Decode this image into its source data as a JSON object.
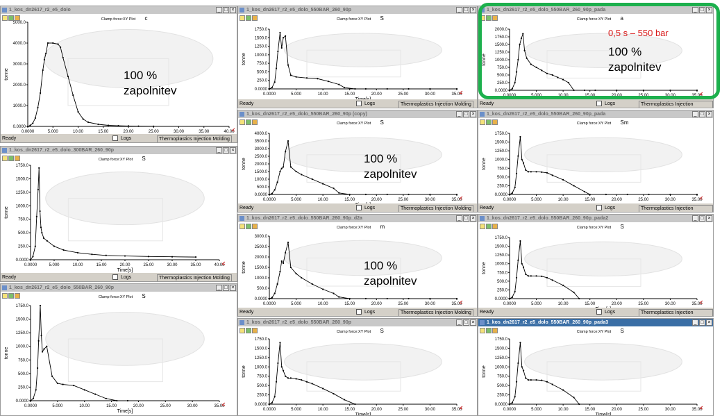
{
  "product": "Thermoplastics Injection Molding",
  "status_text": "Ready",
  "logs_label": "Logs",
  "fill_label": "100 %\nzapolnitev",
  "windows": [
    {
      "title": "1_kos_dn2617_r2_e5_dolo",
      "active": false
    },
    {
      "title": "1_kos_dn2617_r2_e5_dolo_300BAR_260_90p",
      "active": false
    },
    {
      "title": "1_kos_dn2617_r2_e5_dolo_550BAR_260_90p",
      "active": false
    },
    {
      "title": "1_kos_dn2617_r2_e5_dolo_550BAR_260_90p",
      "active": false
    },
    {
      "title": "1_kos_dn2617_r2_e5_dolo_550BAR_260_90p (copy)",
      "active": false
    },
    {
      "title": "1_kos_dn2617_r2_e5_dolo_550BAR_260_90p_d2a",
      "active": false
    },
    {
      "title": "1_kos_dn2617_r2_e5_dolo_550BAR_260_90p",
      "active": false
    },
    {
      "title": "1_kos_dn2617_r2_e5_dolo_550BAR_260_90p_pada",
      "active": false
    },
    {
      "title": "1_kos_dn2617_r2_e5_dolo_550BAR_260_90p_pada2",
      "active": false
    },
    {
      "title": "1_kos_dn2617_r2_e5_dolo_550BAR_260_90p_pada3",
      "active": true
    }
  ],
  "annotations": {
    "pressure_note": "0,5 s – 550 bar"
  },
  "chart_data": [
    {
      "type": "line",
      "title": "Clamp force:XY Plot",
      "title_suffix": "c",
      "xlabel": "Time[s]",
      "ylabel": "tonne",
      "xlim": [
        0,
        40
      ],
      "ylim": [
        0,
        5000
      ],
      "xticks": [
        "0.0000",
        "5.000",
        "10.00",
        "15.00",
        "20.00",
        "25.00",
        "30.00",
        "35.00",
        "40.00"
      ],
      "yticks": [
        "0.0000",
        "1000.0",
        "2000.0",
        "3000.0",
        "4000.0",
        "5000.0"
      ],
      "x": [
        0,
        0.5,
        1,
        1.5,
        2,
        2.5,
        3,
        3.3,
        3.6,
        4,
        5,
        6,
        6.5,
        7,
        8,
        9,
        10,
        11,
        12,
        14,
        16,
        18,
        20,
        22,
        25
      ],
      "y": [
        0,
        50,
        150,
        400,
        900,
        1600,
        2700,
        3200,
        3500,
        4000,
        4000,
        3950,
        3800,
        3300,
        2400,
        1500,
        700,
        350,
        200,
        100,
        50,
        30,
        20,
        10,
        5
      ]
    },
    {
      "type": "line",
      "title": "Clamp force:XY Plot",
      "title_suffix": "S",
      "xlabel": "Time[s]",
      "ylabel": "tonne",
      "xlim": [
        0,
        40
      ],
      "ylim": [
        0,
        1750
      ],
      "xticks": [
        "0.0000",
        "5.000",
        "10.00",
        "15.00",
        "20.00",
        "25.00",
        "30.00",
        "35.00",
        "40.00"
      ],
      "yticks": [
        "0.0000",
        "250.0",
        "500.0",
        "750.0",
        "1000.0",
        "1250.0",
        "1500.0",
        "1750.0"
      ],
      "x": [
        0,
        0.5,
        1,
        1.3,
        1.6,
        1.8,
        2,
        2.2,
        2.4,
        2.8,
        3.5,
        5,
        7,
        10,
        13,
        16,
        20,
        25,
        30,
        35
      ],
      "y": [
        0,
        60,
        250,
        800,
        1300,
        1700,
        900,
        600,
        500,
        400,
        350,
        250,
        180,
        130,
        100,
        80,
        70,
        60,
        55,
        50
      ]
    },
    {
      "type": "line",
      "title": "Clamp force:XY Plot",
      "title_suffix": "S",
      "xlabel": "Time[s]",
      "ylabel": "tonne",
      "xlim": [
        0,
        35
      ],
      "ylim": [
        0,
        1750
      ],
      "xticks": [
        "0.0000",
        "5.000",
        "10.00",
        "15.00",
        "20.00",
        "25.00",
        "30.00",
        "35.00"
      ],
      "yticks": [
        "0.0000",
        "250.0",
        "500.0",
        "750.0",
        "1000.0",
        "1250.0",
        "1500.0",
        "1750.0"
      ],
      "x": [
        0,
        0.5,
        1,
        1.3,
        1.5,
        1.8,
        2,
        2.2,
        2.5,
        3,
        4,
        5,
        6,
        8,
        10,
        12,
        14,
        16,
        18
      ],
      "y": [
        0,
        40,
        200,
        600,
        1100,
        1750,
        1200,
        900,
        950,
        1000,
        450,
        320,
        300,
        280,
        200,
        120,
        40,
        0,
        0
      ]
    },
    {
      "type": "line",
      "title": "Clamp force:XY Plot",
      "title_suffix": "S",
      "xlabel": "Time[s]",
      "ylabel": "tonne",
      "xlim": [
        0,
        35
      ],
      "ylim": [
        0,
        1750
      ],
      "xticks": [
        "0.0000",
        "5.000",
        "10.00",
        "15.00",
        "20.00",
        "25.00",
        "30.00",
        "35.00"
      ],
      "yticks": [
        "0.0000",
        "250.0",
        "500.0",
        "750.0",
        "1000.0",
        "1250.0",
        "1500.0",
        "1750.0"
      ],
      "x": [
        0,
        0.5,
        1,
        1.3,
        1.6,
        2,
        2.3,
        2.6,
        3,
        3.5,
        4,
        5,
        7,
        9,
        11,
        13,
        14,
        16,
        18,
        22,
        26,
        30,
        35
      ],
      "y": [
        0,
        40,
        200,
        600,
        1100,
        1650,
        1200,
        1500,
        1550,
        700,
        400,
        350,
        320,
        300,
        220,
        130,
        40,
        0,
        0,
        0,
        0,
        0,
        0
      ]
    },
    {
      "type": "line",
      "title": "Clamp force:XY Plot",
      "title_suffix": "S",
      "xlabel": "Time[s]",
      "ylabel": "tonne",
      "xlim": [
        0,
        35
      ],
      "ylim": [
        0,
        4000
      ],
      "xticks": [
        "0.0000",
        "5.000",
        "10.00",
        "15.00",
        "20.00",
        "25.00",
        "30.00",
        "35.00"
      ],
      "yticks": [
        "0.0000",
        "500.0",
        "1000.0",
        "1500.0",
        "2000.0",
        "2500.0",
        "3000.0",
        "3500.0",
        "4000.0"
      ],
      "x": [
        0,
        0.5,
        1,
        1.5,
        2,
        2.3,
        2.6,
        3,
        3.5,
        4,
        5,
        6,
        8,
        10,
        12,
        13,
        15,
        18,
        22,
        26,
        30,
        35
      ],
      "y": [
        0,
        60,
        300,
        800,
        1500,
        1700,
        1800,
        2800,
        3500,
        1800,
        1500,
        1300,
        1000,
        700,
        400,
        100,
        0,
        0,
        0,
        0,
        0,
        0
      ]
    },
    {
      "type": "line",
      "title": "Clamp force:XY Plot",
      "title_suffix": "m",
      "xlabel": "",
      "ylabel": "tonne",
      "xlim": [
        0,
        35
      ],
      "ylim": [
        0,
        3000
      ],
      "xticks": [
        "0.0000",
        "5.000",
        "10.00",
        "15.00",
        "20.00",
        "25.00",
        "30.00",
        "35.00"
      ],
      "yticks": [
        "0.0000",
        "500.0",
        "1000.0",
        "1500.0",
        "2000.0",
        "2500.0",
        "3000.0"
      ],
      "x": [
        0,
        0.5,
        1,
        1.5,
        2,
        2.3,
        2.6,
        3,
        3.5,
        4,
        5,
        6,
        8,
        10,
        12,
        13,
        15,
        18,
        22,
        26,
        30,
        35
      ],
      "y": [
        0,
        50,
        250,
        700,
        1300,
        1800,
        1700,
        2200,
        2700,
        1500,
        1200,
        1000,
        700,
        450,
        250,
        80,
        0,
        0,
        0,
        0,
        0,
        0
      ]
    },
    {
      "type": "line",
      "title": "Clamp force:XY Plot",
      "title_suffix": "S",
      "xlabel": "Time[s]",
      "ylabel": "tonne",
      "xlim": [
        0,
        35
      ],
      "ylim": [
        0,
        1750
      ],
      "xticks": [
        "0.0000",
        "5.000",
        "10.00",
        "15.00",
        "20.00",
        "25.00",
        "30.00",
        "35.00"
      ],
      "yticks": [
        "0.0000",
        "250.0",
        "500.0",
        "750.0",
        "1000.0",
        "1250.0",
        "1500.0",
        "1750.0"
      ],
      "x": [
        0,
        0.5,
        1,
        1.3,
        1.6,
        2,
        2.3,
        2.6,
        3,
        3.5,
        4,
        5,
        6,
        7,
        8,
        10,
        12,
        14,
        16
      ],
      "y": [
        0,
        40,
        200,
        600,
        1100,
        1650,
        1000,
        900,
        750,
        700,
        700,
        680,
        650,
        600,
        550,
        420,
        280,
        120,
        0
      ]
    },
    {
      "type": "line",
      "title": "Clamp force:XY Plot",
      "title_suffix": "Sm",
      "xlabel": "",
      "ylabel": "tonne",
      "xlim": [
        0,
        35
      ],
      "ylim": [
        0,
        1750
      ],
      "xticks": [
        "0.0000",
        "5.000",
        "10.00",
        "15.00",
        "20.00",
        "25.00",
        "30.00",
        "35.00"
      ],
      "yticks": [
        "0.0000",
        "250.0",
        "500.0",
        "750.0",
        "1000.0",
        "1250.0",
        "1500.0",
        "1750.0"
      ],
      "x": [
        0,
        0.5,
        1,
        1.3,
        1.6,
        2,
        2.3,
        2.6,
        3,
        3.5,
        4,
        5,
        6,
        7,
        8,
        10,
        12,
        14,
        15,
        18,
        22,
        26,
        30,
        35
      ],
      "y": [
        0,
        40,
        200,
        600,
        1100,
        1650,
        1000,
        900,
        700,
        650,
        650,
        650,
        640,
        620,
        550,
        420,
        250,
        80,
        0,
        0,
        0,
        0,
        0,
        0
      ]
    },
    {
      "type": "line",
      "title": "Clamp force:XY Plot",
      "title_suffix": "S",
      "xlabel": "Time[s]",
      "ylabel": "tonne",
      "xlim": [
        0,
        35
      ],
      "ylim": [
        0,
        1750
      ],
      "xticks": [
        "0.0000",
        "5.000",
        "10.00",
        "15.00",
        "20.00",
        "25.00",
        "30.00",
        "35.00"
      ],
      "yticks": [
        "0.0000",
        "250.0",
        "500.0",
        "750.0",
        "1000.0",
        "1250.0",
        "1500.0",
        "1750.0"
      ],
      "x": [
        0,
        0.5,
        1,
        1.3,
        1.6,
        2,
        2.3,
        2.6,
        3,
        3.5,
        4,
        5,
        6,
        7,
        8,
        10,
        12,
        13
      ],
      "y": [
        0,
        40,
        200,
        600,
        1100,
        1650,
        1000,
        900,
        700,
        650,
        650,
        650,
        640,
        600,
        530,
        380,
        180,
        0
      ]
    },
    {
      "type": "line",
      "title": "Clamp force:XY Plot",
      "title_suffix": "a",
      "xlabel": "Time[s]",
      "ylabel": "tonne",
      "xlim": [
        0,
        35
      ],
      "ylim": [
        0,
        2000
      ],
      "xticks": [
        "0.0000",
        "5.000",
        "10.00",
        "15.00",
        "20.00",
        "25.00",
        "30.00",
        "35.00"
      ],
      "yticks": [
        "0.0000",
        "250.0",
        "500.0",
        "750.0",
        "1000.0",
        "1250.0",
        "1500.0",
        "1750.0",
        "2000.0"
      ],
      "x": [
        0,
        0.5,
        1,
        1.3,
        1.6,
        1.9,
        2.2,
        2.5,
        2.8,
        3.2,
        4,
        5,
        6,
        7,
        8,
        9,
        10,
        11,
        12,
        14,
        16,
        20,
        25,
        30,
        35
      ],
      "y": [
        0,
        50,
        250,
        600,
        1000,
        1500,
        1700,
        1850,
        1300,
        1050,
        850,
        750,
        650,
        550,
        500,
        420,
        350,
        250,
        0,
        0,
        0,
        0,
        0,
        0,
        0
      ]
    }
  ]
}
